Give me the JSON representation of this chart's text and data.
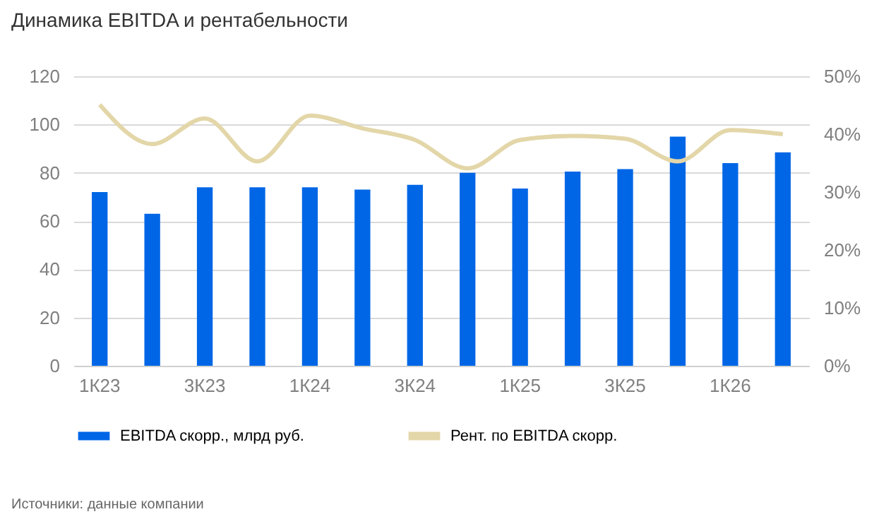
{
  "chart_data": {
    "type": "bar",
    "title": "Динамика EBITDA и рентабельности",
    "categories": [
      "1К23",
      null,
      "3К23",
      null,
      "1К24",
      null,
      "3К24",
      null,
      "1К25",
      null,
      "3К25",
      null,
      "1К26",
      null
    ],
    "series": [
      {
        "name": "EBITDA скорр., млрд руб.",
        "color": "#0066e6",
        "values": [
          72,
          63,
          74,
          74,
          74,
          73,
          75,
          80,
          73.5,
          80.5,
          81.5,
          95,
          84,
          88.5
        ]
      },
      {
        "name": "Рент. по EBITDA скорр.",
        "type": "line",
        "axis": "y2",
        "color": "#e3d6a8",
        "values": [
          45.1,
          38.3,
          42.7,
          35.3,
          43.2,
          41,
          39,
          34.1,
          39,
          39.7,
          39.2,
          35.3,
          40.7,
          40
        ]
      }
    ],
    "ylim": [
      0,
      120
    ],
    "yticks": [
      0,
      20,
      40,
      60,
      80,
      100,
      120
    ],
    "y2lim": [
      0,
      50
    ],
    "y2ticks": [
      {
        "value": 0,
        "label": "0%"
      },
      {
        "value": 10,
        "label": "10%"
      },
      {
        "value": 20,
        "label": "20%"
      },
      {
        "value": 30,
        "label": "30%"
      },
      {
        "value": 40,
        "label": "40%"
      },
      {
        "value": 50,
        "label": "50%"
      }
    ],
    "grid": "y",
    "legend": "bottom",
    "marker": "none",
    "line_style": "solid",
    "annotations": [
      "Источники: данные компании"
    ]
  }
}
